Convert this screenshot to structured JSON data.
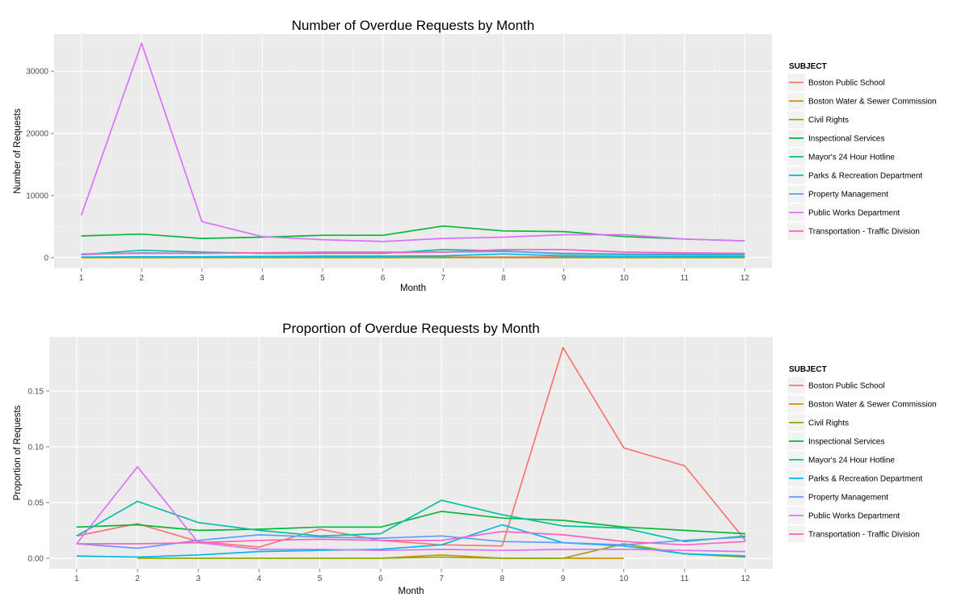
{
  "chart_data": [
    {
      "type": "line",
      "title": "Number of Overdue Requests by Month",
      "xlabel": "Month",
      "ylabel": "Number of Requests",
      "x": [
        1,
        2,
        3,
        4,
        5,
        6,
        7,
        8,
        9,
        10,
        11,
        12
      ],
      "xlim": [
        0.55,
        12.45
      ],
      "ylim": [
        -1700,
        36000
      ],
      "yticks": [
        0,
        10000,
        20000,
        30000
      ],
      "ytick_labels": [
        "0",
        "10000",
        "20000",
        "30000"
      ],
      "legend_title": "SUBJECT",
      "legend_position": "right",
      "series": [
        {
          "name": "Boston Public School",
          "color": "#F8766D",
          "values": [
            80,
            120,
            90,
            100,
            110,
            90,
            100,
            110,
            150,
            120,
            100,
            90
          ]
        },
        {
          "name": "Boston Water & Sewer Commission",
          "color": "#D39200",
          "values": [
            20,
            20,
            20,
            20,
            20,
            20,
            60,
            30,
            20,
            20,
            20,
            20
          ]
        },
        {
          "name": "Civil Rights",
          "color": "#93AA00",
          "values": [
            10,
            10,
            10,
            10,
            10,
            10,
            10,
            10,
            10,
            10,
            10,
            10
          ]
        },
        {
          "name": "Inspectional Services",
          "color": "#00BA38",
          "values": [
            3500,
            3800,
            3100,
            3300,
            3600,
            3600,
            5100,
            4300,
            4200,
            3400,
            3000,
            2700
          ]
        },
        {
          "name": "Mayor's 24 Hour Hotline",
          "color": "#00C19F",
          "values": [
            500,
            1200,
            900,
            700,
            700,
            700,
            1300,
            1100,
            600,
            500,
            400,
            400
          ]
        },
        {
          "name": "Parks & Recreation Department",
          "color": "#00B9E3",
          "values": [
            100,
            150,
            150,
            200,
            250,
            250,
            300,
            600,
            300,
            200,
            150,
            150
          ]
        },
        {
          "name": "Property Management",
          "color": "#619CFF",
          "values": [
            500,
            800,
            700,
            800,
            800,
            800,
            900,
            1000,
            700,
            600,
            600,
            600
          ]
        },
        {
          "name": "Public Works Department",
          "color": "#DB72FB",
          "values": [
            6800,
            34500,
            5800,
            3400,
            2900,
            2600,
            3100,
            3300,
            3700,
            3700,
            3000,
            2700
          ]
        },
        {
          "name": "Transportation - Traffic Division",
          "color": "#FF61C3",
          "values": [
            600,
            700,
            700,
            800,
            900,
            900,
            900,
            1300,
            1300,
            900,
            800,
            700
          ]
        }
      ]
    },
    {
      "type": "line",
      "title": "Proportion of Overdue Requests by Month",
      "xlabel": "Month",
      "ylabel": "Proportion of Requests",
      "x": [
        1,
        2,
        3,
        4,
        5,
        6,
        7,
        8,
        9,
        10,
        11,
        12
      ],
      "xlim": [
        0.55,
        12.45
      ],
      "ylim": [
        -0.0095,
        0.1985
      ],
      "yticks": [
        0,
        0.05,
        0.1,
        0.15
      ],
      "ytick_labels": [
        "0.00",
        "0.05",
        "0.10",
        "0.15"
      ],
      "legend_title": "SUBJECT",
      "legend_position": "right",
      "series": [
        {
          "name": "Boston Public School",
          "color": "#F8766D",
          "values": [
            0.02,
            0.031,
            0.015,
            0.01,
            0.026,
            0.016,
            0.012,
            0.011,
            0.189,
            0.099,
            0.083,
            0.016
          ]
        },
        {
          "name": "Boston Water & Sewer Commission",
          "color": "#D39200",
          "values": [
            null,
            null,
            null,
            null,
            null,
            0.0,
            0.003,
            0.0,
            0.0,
            0.0,
            null,
            null
          ]
        },
        {
          "name": "Civil Rights",
          "color": "#93AA00",
          "values": [
            null,
            0.0,
            0.0,
            0.0,
            0.0,
            0.0,
            0.001,
            0.0,
            0.0,
            0.013,
            0.004,
            0.001
          ]
        },
        {
          "name": "Inspectional Services",
          "color": "#00BA38",
          "values": [
            0.028,
            0.03,
            0.025,
            0.026,
            0.028,
            0.028,
            0.042,
            0.036,
            0.034,
            0.028,
            0.025,
            0.022
          ]
        },
        {
          "name": "Mayor's 24 Hour Hotline",
          "color": "#00C19F",
          "values": [
            0.02,
            0.051,
            0.032,
            0.025,
            0.02,
            0.022,
            0.052,
            0.039,
            0.029,
            0.027,
            0.015,
            0.02
          ]
        },
        {
          "name": "Parks & Recreation Department",
          "color": "#00B9E3",
          "values": [
            0.002,
            0.001,
            0.003,
            0.006,
            0.007,
            0.008,
            0.012,
            0.03,
            0.014,
            0.011,
            0.004,
            0.002
          ]
        },
        {
          "name": "Property Management",
          "color": "#619CFF",
          "values": [
            0.013,
            0.009,
            0.016,
            0.021,
            0.019,
            0.018,
            0.02,
            0.015,
            0.014,
            0.012,
            0.016,
            0.019
          ]
        },
        {
          "name": "Public Works Department",
          "color": "#DB72FB",
          "values": [
            0.013,
            0.082,
            0.014,
            0.008,
            0.008,
            0.007,
            0.008,
            0.007,
            0.008,
            0.008,
            0.007,
            0.006
          ]
        },
        {
          "name": "Transportation - Traffic Division",
          "color": "#FF61C3",
          "values": [
            0.013,
            0.013,
            0.014,
            0.016,
            0.017,
            0.016,
            0.016,
            0.024,
            0.021,
            0.015,
            0.012,
            0.015
          ]
        }
      ]
    }
  ]
}
